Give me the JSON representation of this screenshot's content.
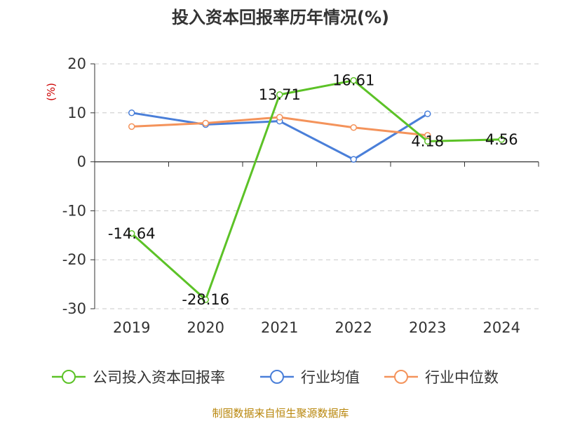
{
  "chart_data": {
    "type": "line",
    "title": "投入资本回报率历年情况(%)",
    "ylabel": "(%)",
    "categories": [
      "2019",
      "2020",
      "2021",
      "2022",
      "2023",
      "2024"
    ],
    "ylim": [
      -30,
      20
    ],
    "yticks": [
      20,
      10,
      0,
      -10,
      -20,
      -30
    ],
    "grid": true,
    "legend": "bottom",
    "series": [
      {
        "name": "公司投入资本回报率",
        "color": "#5cc227",
        "values": [
          -14.64,
          -28.16,
          13.71,
          16.61,
          4.18,
          4.56
        ],
        "labels": [
          "-14.64",
          "-28.16",
          "13.71",
          "16.61",
          "4.18",
          "4.56"
        ]
      },
      {
        "name": "行业均值",
        "color": "#4a7fd9",
        "values": [
          10.0,
          7.6,
          8.3,
          0.5,
          9.8,
          null
        ]
      },
      {
        "name": "行业中位数",
        "color": "#f4935b",
        "values": [
          7.2,
          7.9,
          9.1,
          7.0,
          5.4,
          null
        ]
      }
    ],
    "source": "制图数据来自恒生聚源数据库"
  }
}
